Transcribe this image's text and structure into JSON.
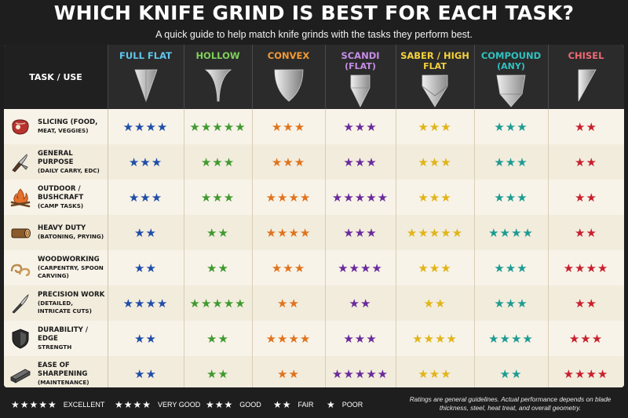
{
  "title": "WHICH KNIFE GRIND IS BEST FOR EACH TASK?",
  "subtitle": "A quick guide to help match knife grinds with the tasks they perform best.",
  "table": {
    "task_header": "TASK / USE",
    "columns": [
      {
        "name": "FULL FLAT",
        "sub": "",
        "color": "#5fc6ee",
        "icon": "full-flat-grind-icon"
      },
      {
        "name": "HOLLOW",
        "sub": "",
        "color": "#7fd05a",
        "icon": "hollow-grind-icon"
      },
      {
        "name": "CONVEX",
        "sub": "",
        "color": "#f39a34",
        "icon": "convex-grind-icon"
      },
      {
        "name": "SCANDI",
        "sub": "(FLAT)",
        "color": "#c68ee8",
        "icon": "scandi-grind-icon"
      },
      {
        "name": "SABER / HIGH",
        "sub": "FLAT",
        "color": "#f5d23c",
        "icon": "saber-grind-icon"
      },
      {
        "name": "COMPOUND",
        "sub": "(ANY)",
        "color": "#2fc2c0",
        "icon": "compound-grind-icon"
      },
      {
        "name": "CHISEL",
        "sub": "",
        "color": "#ee6a73",
        "icon": "chisel-grind-icon"
      }
    ],
    "star_colors": [
      "#1f4da8",
      "#3f9a2f",
      "#e0731e",
      "#6a2a9c",
      "#e1b418",
      "#1d9b92",
      "#c8202e"
    ],
    "rows": [
      {
        "l1": "SLICING (FOOD,",
        "l2": "MEAT, VEGGIES)",
        "icon": "steak-icon",
        "ratings": [
          4,
          5,
          3,
          3,
          3,
          3,
          2
        ]
      },
      {
        "l1": "GENERAL PURPOSE",
        "l2": "(DAILY CARRY, EDC)",
        "icon": "folding-knife-icon",
        "ratings": [
          3,
          3,
          3,
          3,
          3,
          3,
          2
        ]
      },
      {
        "l1": "OUTDOOR / BUSHCRAFT",
        "l2": "(CAMP TASKS)",
        "icon": "campfire-icon",
        "ratings": [
          3,
          3,
          4,
          5,
          3,
          3,
          2
        ]
      },
      {
        "l1": "HEAVY DUTY",
        "l2": "(BATONING, PRYING)",
        "icon": "log-icon",
        "ratings": [
          2,
          2,
          4,
          3,
          5,
          4,
          2
        ]
      },
      {
        "l1": "WOODWORKING",
        "l2": "(CARPENTRY, SPOON CARVING)",
        "icon": "wood-shavings-icon",
        "ratings": [
          2,
          2,
          3,
          4,
          3,
          3,
          4
        ]
      },
      {
        "l1": "PRECISION WORK",
        "l2": "(DETAILED, INTRICATE CUTS)",
        "icon": "scalpel-icon",
        "ratings": [
          4,
          5,
          2,
          2,
          2,
          3,
          2
        ]
      },
      {
        "l1": "DURABILITY / EDGE",
        "l2": "STRENGTH",
        "icon": "shield-icon",
        "ratings": [
          2,
          2,
          4,
          3,
          4,
          4,
          3
        ]
      },
      {
        "l1": "EASE OF SHARPENING",
        "l2": "(MAINTENANCE)",
        "icon": "sharpening-stone-icon",
        "ratings": [
          2,
          2,
          2,
          5,
          3,
          2,
          4
        ]
      }
    ]
  },
  "legend": [
    {
      "stars": "★★★★★",
      "label": "EXCELLENT"
    },
    {
      "stars": "★★★★",
      "label": "VERY GOOD"
    },
    {
      "stars": "★★★",
      "label": "GOOD"
    },
    {
      "stars": "★★",
      "label": "FAIR"
    },
    {
      "stars": "★",
      "label": "POOR"
    }
  ],
  "note": "Ratings are general guidelines. Actual performance depends on blade thickness, steel, heat treat, and overall geometry."
}
